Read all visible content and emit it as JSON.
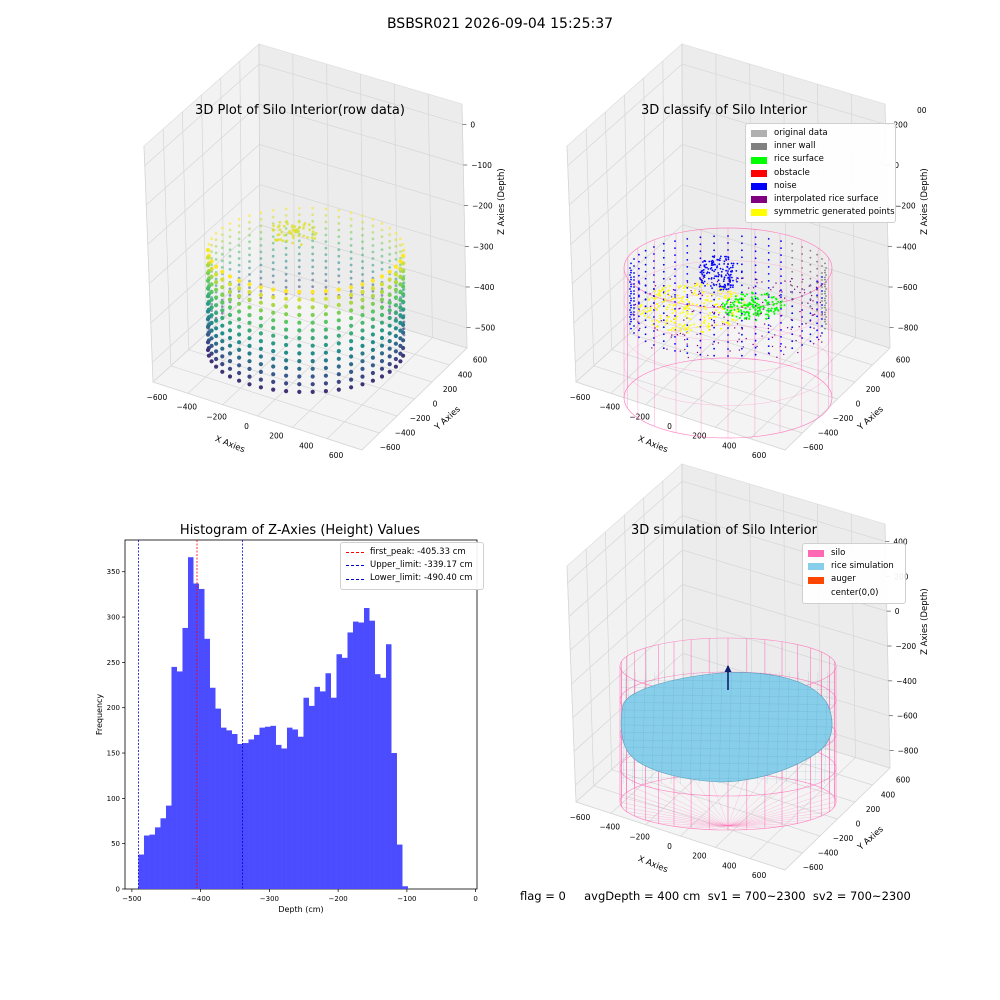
{
  "suptitle": "BSBSR021 2026-09-04 15:25:37",
  "colors": {
    "hist_bar": "#4b4bff",
    "first_peak": "#ff0000",
    "limits": "#0000cc",
    "original": "#b0b0b0",
    "inner_wall": "#808080",
    "rice_surface": "#00ff00",
    "obstacle": "#ff0000",
    "noise": "#0000ff",
    "interpolated": "#800080",
    "symmetric": "#ffff00",
    "silo": "#ff69b4",
    "rice_sim": "#87ceeb",
    "auger": "#ff4500"
  },
  "chart_data": [
    {
      "type": "scatter",
      "title": "3D Plot of Silo Interior(row data)",
      "xlabel": "X Axies",
      "ylabel": "Y Axies",
      "zlabel": "Z Axies (Depth)",
      "xticks": [
        "−600",
        "−400",
        "−200",
        "0",
        "200",
        "400",
        "600"
      ],
      "yticks": [
        "−600",
        "−400",
        "−200",
        "0",
        "200",
        "400",
        "600"
      ],
      "zticks": [
        "0",
        "−100",
        "−200",
        "−300",
        "−400",
        "−500"
      ],
      "colormap": "viridis"
    },
    {
      "type": "scatter",
      "title": "3D classify of Silo Interior",
      "xlabel": "X Axies",
      "ylabel": "Y Axies",
      "zlabel": "Z Axies (Depth)",
      "xticks": [
        "−600",
        "−400",
        "−200",
        "0",
        "200",
        "400",
        "600"
      ],
      "yticks": [
        "−600",
        "−400",
        "−200",
        "0",
        "200",
        "400",
        "600"
      ],
      "zticks": [
        "200",
        "0",
        "−200",
        "−400",
        "−600",
        "−800"
      ],
      "partial_tick": "00",
      "legend": [
        "original data",
        "inner wall",
        "rice surface",
        "obstacle",
        "noise",
        "interpolated rice surface",
        "symmetric generated points"
      ],
      "legend_position": "top-right"
    },
    {
      "type": "bar",
      "title": "Histogram of Z-Axies (Height) Values",
      "xlabel": "Depth (cm)",
      "ylabel": "Frequency",
      "xlim": [
        -510,
        2
      ],
      "ylim": [
        0,
        385
      ],
      "bin_width": 8,
      "bins_start": -490.4,
      "values": [
        38,
        59,
        60,
        68,
        78,
        92,
        245,
        240,
        288,
        366,
        337,
        331,
        276,
        222,
        199,
        178,
        175,
        171,
        160,
        161,
        165,
        170,
        178,
        179,
        180,
        159,
        155,
        178,
        176,
        168,
        211,
        202,
        223,
        218,
        238,
        211,
        259,
        255,
        283,
        295,
        294,
        310,
        296,
        237,
        233,
        270,
        150,
        49,
        3
      ],
      "xticks": [
        -500,
        -400,
        -300,
        -200,
        -100,
        0
      ],
      "xtick_labels": [
        "−500",
        "−400",
        "−300",
        "−200",
        "−100",
        "0"
      ],
      "yticks": [
        0,
        50,
        100,
        150,
        200,
        250,
        300,
        350
      ],
      "vlines": [
        {
          "label": "first_peak: -405.33 cm",
          "x": -405.33,
          "color": "#ff0000"
        },
        {
          "label": "Upper_limit: -339.17 cm",
          "x": -339.17,
          "color": "#0000cc"
        },
        {
          "label": "Lower_limit: -490.40 cm",
          "x": -490.4,
          "color": "#0000cc"
        }
      ],
      "legend_position": "top-right"
    },
    {
      "type": "scatter",
      "title": "3D simulation of Silo Interior",
      "xlabel": "X Axies",
      "ylabel": "Y Axies",
      "zlabel": "Z Axies (Depth)",
      "xticks": [
        "−600",
        "−400",
        "−200",
        "0",
        "200",
        "400",
        "600"
      ],
      "yticks": [
        "−600",
        "−400",
        "−200",
        "0",
        "200",
        "400",
        "600"
      ],
      "zticks": [
        "400",
        "200",
        "0",
        "−200",
        "−400",
        "−600",
        "−800"
      ],
      "legend": [
        "silo",
        "rice simulation",
        "auger",
        "center(0,0)"
      ],
      "legend_position": "top-right"
    }
  ],
  "footer": "flag = 0     avgDepth = 400 cm  sv1 = 700~2300  sv2 = 700~2300"
}
